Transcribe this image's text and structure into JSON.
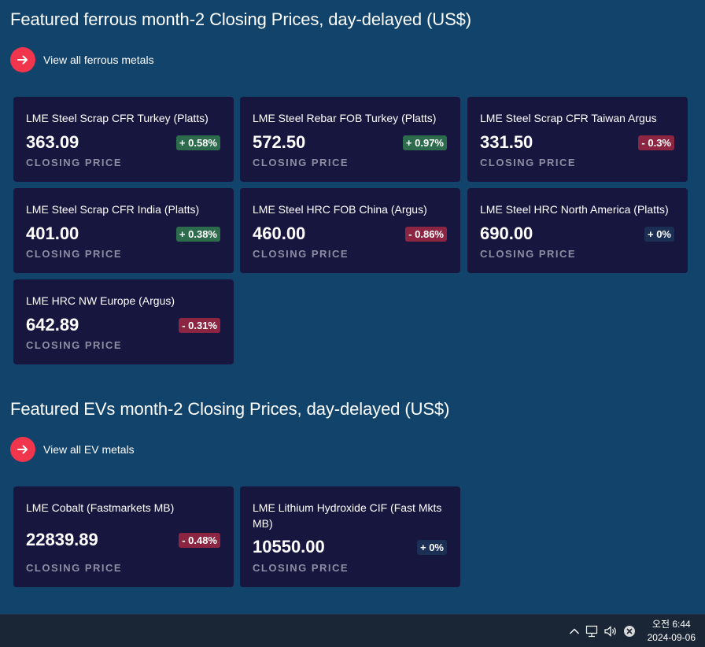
{
  "sections": [
    {
      "title": "Featured ferrous month-2 Closing Prices, day-delayed (US$)",
      "link_label": "View all ferrous metals",
      "cards": [
        {
          "name": "LME Steel Scrap CFR Turkey (Platts)",
          "price": "363.09",
          "label": "CLOSING PRICE",
          "change": "+ 0.58%",
          "direction": "up"
        },
        {
          "name": "LME Steel Rebar FOB Turkey (Platts)",
          "price": "572.50",
          "label": "CLOSING PRICE",
          "change": "+ 0.97%",
          "direction": "up"
        },
        {
          "name": "LME Steel Scrap CFR Taiwan Argus",
          "price": "331.50",
          "label": "CLOSING PRICE",
          "change": "- 0.3%",
          "direction": "down"
        },
        {
          "name": "LME Steel Scrap CFR India (Platts)",
          "price": "401.00",
          "label": "CLOSING PRICE",
          "change": "+ 0.38%",
          "direction": "up"
        },
        {
          "name": "LME Steel HRC FOB China (Argus)",
          "price": "460.00",
          "label": "CLOSING PRICE",
          "change": "- 0.86%",
          "direction": "down"
        },
        {
          "name": "LME Steel HRC North America (Platts)",
          "price": "690.00",
          "label": "CLOSING PRICE",
          "change": "+ 0%",
          "direction": "flat"
        },
        {
          "name": "LME HRC NW Europe (Argus)",
          "price": "642.89",
          "label": "CLOSING PRICE",
          "change": "- 0.31%",
          "direction": "down"
        }
      ]
    },
    {
      "title": "Featured EVs month-2 Closing Prices, day-delayed (US$)",
      "link_label": "View all EV metals",
      "cards": [
        {
          "name": "LME Cobalt (Fastmarkets MB)",
          "price": "22839.89",
          "label": "CLOSING PRICE",
          "change": "- 0.48%",
          "direction": "down"
        },
        {
          "name": "LME Lithium Hydroxide CIF (Fast Mkts MB)",
          "price": "10550.00",
          "label": "CLOSING PRICE",
          "change": "+ 0%",
          "direction": "flat"
        }
      ]
    }
  ],
  "colors": {
    "background": "#12436a",
    "card": "#17163e",
    "accent": "#f0354d",
    "up": "#2d6b4d",
    "down": "#8c2541",
    "flat": "#1b2f55"
  },
  "taskbar": {
    "time": "오전 6:44",
    "date": "2024-09-06",
    "icons": [
      "chevron-up-icon",
      "network-icon",
      "volume-icon",
      "close-circle-icon"
    ]
  }
}
